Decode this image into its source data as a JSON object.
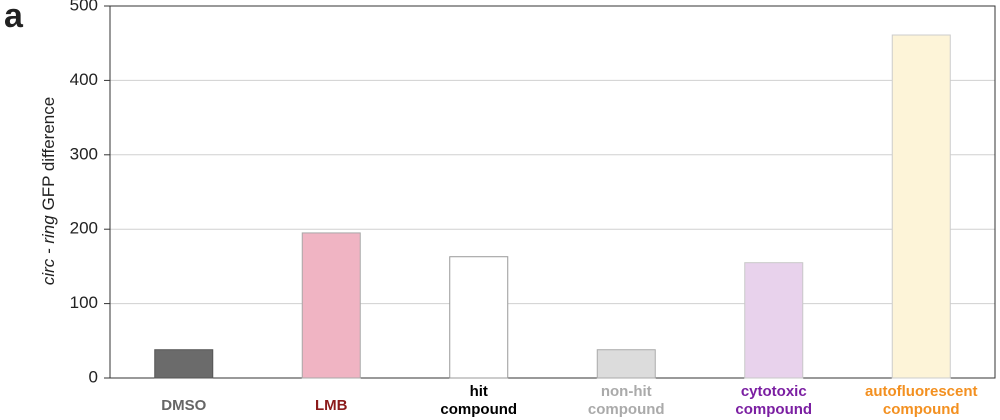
{
  "panel_label": "a",
  "chart_data": {
    "type": "bar",
    "ylabel_italic": "circ - ring",
    "ylabel": "GFP difference",
    "categories": [
      [
        "DMSO"
      ],
      [
        "LMB"
      ],
      [
        "hit",
        "compound"
      ],
      [
        "non-hit",
        "compound"
      ],
      [
        "cytotoxic",
        "compound"
      ],
      [
        "autofluorescent",
        "compound"
      ]
    ],
    "values": [
      38,
      195,
      163,
      38,
      155,
      461
    ],
    "colors": [
      "#6b6b6b",
      "#f0b4c3",
      "#ffffff",
      "#dcdcdc",
      "#e8d2ec",
      "#fdf4d8"
    ],
    "edge_colors": [
      "#555555",
      "#a8a8a8",
      "#999999",
      "#aaaaaa",
      "#c8c8c8",
      "#cccccc"
    ],
    "label_colors": [
      "#666666",
      "#8b1a1a",
      "#000000",
      "#aaaaaa",
      "#7b1fa2",
      "#f39020"
    ],
    "ylim": [
      0,
      500
    ],
    "yticks": [
      0,
      100,
      200,
      300,
      400,
      500
    ],
    "grid": true
  }
}
